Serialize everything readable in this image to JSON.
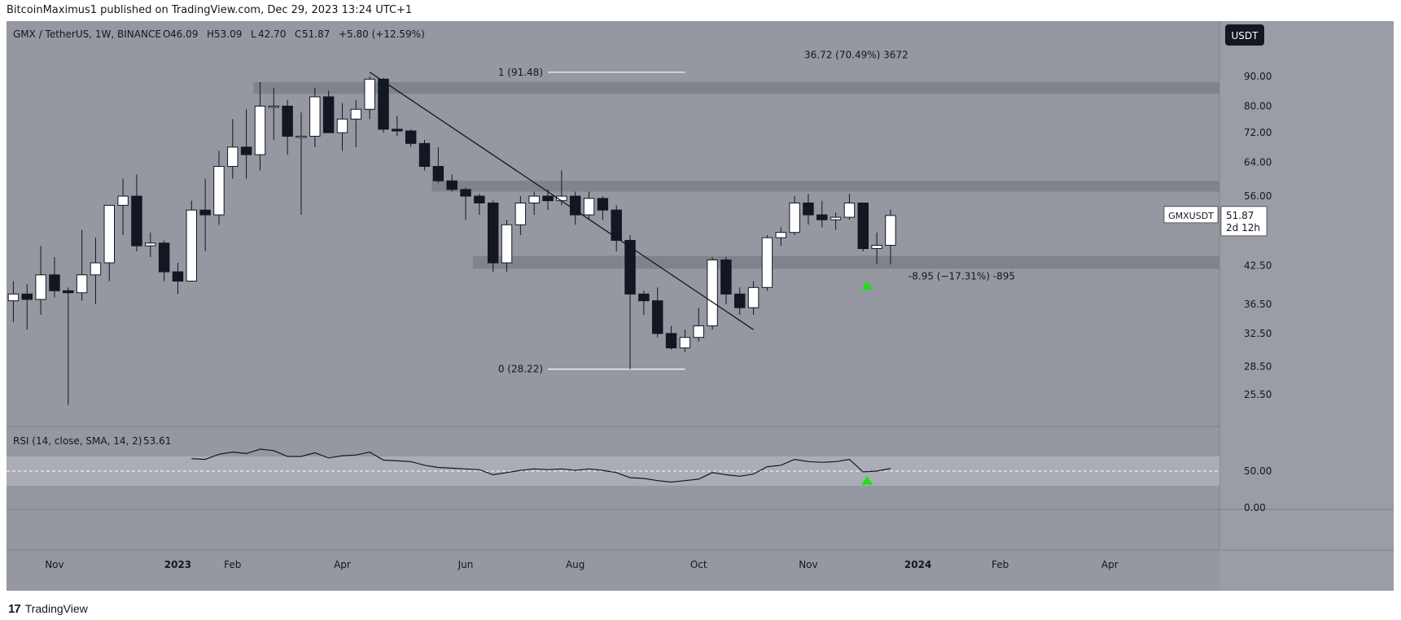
{
  "header": {
    "publisher": "BitcoinMaximus1 published on TradingView.com, Dec 29, 2023 13:24 UTC+1"
  },
  "footer": {
    "brand": "TradingView",
    "logo_glyph": "17"
  },
  "colors": {
    "background": "#9598a1",
    "up": "#ffffff",
    "down": "#131722",
    "zone": "#7c7f88",
    "green": "#22dd22"
  },
  "chart_data": [
    {
      "type": "candlestick",
      "symbol_line": "GMX / TetherUS, 1W, BINANCE",
      "ohlc_labels": {
        "o_label": "O",
        "o": "46.09",
        "h_label": "H",
        "h": "53.09",
        "l_label": "L",
        "l": "42.70",
        "c_label": "C",
        "c": "51.87",
        "change": "+5.80 (+12.59%)"
      },
      "currency_badge": "USDT",
      "price_tag": {
        "symbol": "GMXUSDT",
        "price": "51.87",
        "countdown": "2d 12h"
      },
      "y_scale": "log",
      "ylim": [
        22.5,
        112
      ],
      "y_ticks": [
        90.0,
        80.0,
        72.0,
        64.0,
        56.0,
        42.5,
        36.5,
        32.5,
        28.5,
        25.5
      ],
      "y_tick_labels": [
        "90.00",
        "80.00",
        "72.00",
        "64.00",
        "56.00",
        "42.50",
        "36.50",
        "32.50",
        "28.50",
        "25.50"
      ],
      "x_labels": [
        {
          "week": -6,
          "label": "Nov",
          "bold": false
        },
        {
          "week": 3,
          "label": "2023",
          "bold": true
        },
        {
          "week": 7,
          "label": "Feb",
          "bold": false
        },
        {
          "week": 15,
          "label": "Apr",
          "bold": false
        },
        {
          "week": 24,
          "label": "Jun",
          "bold": false
        },
        {
          "week": 32,
          "label": "Aug",
          "bold": false
        },
        {
          "week": 41,
          "label": "Oct",
          "bold": false
        },
        {
          "week": 49,
          "label": "Nov",
          "bold": false
        },
        {
          "week": 57,
          "label": "2024",
          "bold": true
        },
        {
          "week": 63,
          "label": "Feb",
          "bold": false
        },
        {
          "week": 71,
          "label": "Apr",
          "bold": false
        }
      ],
      "x_range": [
        -9.5,
        79
      ],
      "candles": [
        {
          "w": -9,
          "o": 37.0,
          "h": 40.0,
          "l": 34.0,
          "c": 38.0
        },
        {
          "w": -8,
          "o": 38.0,
          "h": 39.5,
          "l": 33.0,
          "c": 37.2
        },
        {
          "w": -7,
          "o": 37.2,
          "h": 46.0,
          "l": 35.0,
          "c": 41.0
        },
        {
          "w": -6,
          "o": 41.0,
          "h": 44.0,
          "l": 37.5,
          "c": 38.5
        },
        {
          "w": -5,
          "o": 38.5,
          "h": 39.0,
          "l": 24.5,
          "c": 38.2
        },
        {
          "w": -4,
          "o": 38.2,
          "h": 49.0,
          "l": 37.0,
          "c": 41.0
        },
        {
          "w": -3,
          "o": 41.0,
          "h": 47.5,
          "l": 36.5,
          "c": 43.0
        },
        {
          "w": -2,
          "o": 43.0,
          "h": 54.0,
          "l": 40.0,
          "c": 54.0
        },
        {
          "w": -1,
          "o": 54.0,
          "h": 60.0,
          "l": 48.0,
          "c": 56.0
        },
        {
          "w": 0,
          "o": 56.0,
          "h": 61.0,
          "l": 45.0,
          "c": 46.0
        },
        {
          "w": 1,
          "o": 46.0,
          "h": 48.5,
          "l": 44.0,
          "c": 46.5
        },
        {
          "w": 2,
          "o": 46.5,
          "h": 47.0,
          "l": 40.0,
          "c": 41.5
        },
        {
          "w": 3,
          "o": 41.5,
          "h": 43.0,
          "l": 38.0,
          "c": 40.0
        },
        {
          "w": 4,
          "o": 40.0,
          "h": 55.0,
          "l": 40.0,
          "c": 53.0
        },
        {
          "w": 5,
          "o": 53.0,
          "h": 60.0,
          "l": 45.0,
          "c": 52.0
        },
        {
          "w": 6,
          "o": 52.0,
          "h": 67.0,
          "l": 50.0,
          "c": 63.0
        },
        {
          "w": 7,
          "o": 63.0,
          "h": 76.0,
          "l": 60.0,
          "c": 68.0
        },
        {
          "w": 8,
          "o": 68.0,
          "h": 79.0,
          "l": 60.0,
          "c": 66.0
        },
        {
          "w": 9,
          "o": 66.0,
          "h": 88.0,
          "l": 62.0,
          "c": 80.0
        },
        {
          "w": 10,
          "o": 80.0,
          "h": 86.0,
          "l": 70.0,
          "c": 80.0
        },
        {
          "w": 11,
          "o": 80.0,
          "h": 82.0,
          "l": 66.0,
          "c": 71.0
        },
        {
          "w": 12,
          "o": 71.0,
          "h": 78.0,
          "l": 52.0,
          "c": 71.0
        },
        {
          "w": 13,
          "o": 71.0,
          "h": 86.0,
          "l": 68.0,
          "c": 83.0
        },
        {
          "w": 14,
          "o": 83.0,
          "h": 85.0,
          "l": 72.0,
          "c": 72.0
        },
        {
          "w": 15,
          "o": 72.0,
          "h": 81.0,
          "l": 67.0,
          "c": 76.0
        },
        {
          "w": 16,
          "o": 76.0,
          "h": 82.0,
          "l": 68.0,
          "c": 79.0
        },
        {
          "w": 17,
          "o": 79.0,
          "h": 90.0,
          "l": 76.0,
          "c": 89.0
        },
        {
          "w": 18,
          "o": 89.0,
          "h": 89.5,
          "l": 72.0,
          "c": 73.0
        },
        {
          "w": 19,
          "o": 73.0,
          "h": 77.0,
          "l": 71.0,
          "c": 72.5
        },
        {
          "w": 20,
          "o": 72.5,
          "h": 73.0,
          "l": 68.0,
          "c": 69.0
        },
        {
          "w": 21,
          "o": 69.0,
          "h": 70.0,
          "l": 62.0,
          "c": 63.0
        },
        {
          "w": 22,
          "o": 63.0,
          "h": 68.0,
          "l": 59.0,
          "c": 59.5
        },
        {
          "w": 23,
          "o": 59.5,
          "h": 61.0,
          "l": 57.0,
          "c": 57.5
        },
        {
          "w": 24,
          "o": 57.5,
          "h": 58.0,
          "l": 51.0,
          "c": 56.0
        },
        {
          "w": 25,
          "o": 56.0,
          "h": 56.5,
          "l": 52.0,
          "c": 54.5
        },
        {
          "w": 26,
          "o": 54.5,
          "h": 55.0,
          "l": 41.5,
          "c": 43.0
        },
        {
          "w": 27,
          "o": 43.0,
          "h": 51.0,
          "l": 41.5,
          "c": 50.0
        },
        {
          "w": 28,
          "o": 50.0,
          "h": 56.0,
          "l": 48.0,
          "c": 54.5
        },
        {
          "w": 29,
          "o": 54.5,
          "h": 57.0,
          "l": 52.0,
          "c": 56.0
        },
        {
          "w": 30,
          "o": 56.0,
          "h": 57.5,
          "l": 53.0,
          "c": 55.0
        },
        {
          "w": 31,
          "o": 55.0,
          "h": 62.0,
          "l": 54.0,
          "c": 56.0
        },
        {
          "w": 32,
          "o": 56.0,
          "h": 57.0,
          "l": 50.0,
          "c": 52.0
        },
        {
          "w": 33,
          "o": 52.0,
          "h": 57.0,
          "l": 51.0,
          "c": 55.5
        },
        {
          "w": 34,
          "o": 55.5,
          "h": 56.0,
          "l": 51.0,
          "c": 53.0
        },
        {
          "w": 35,
          "o": 53.0,
          "h": 54.0,
          "l": 45.0,
          "c": 47.0
        },
        {
          "w": 36,
          "o": 47.0,
          "h": 48.0,
          "l": 28.22,
          "c": 38.0
        },
        {
          "w": 37,
          "o": 38.0,
          "h": 38.5,
          "l": 35.0,
          "c": 37.0
        },
        {
          "w": 38,
          "o": 37.0,
          "h": 39.0,
          "l": 32.0,
          "c": 32.5
        },
        {
          "w": 39,
          "o": 32.5,
          "h": 33.5,
          "l": 30.5,
          "c": 30.7
        },
        {
          "w": 40,
          "o": 30.7,
          "h": 33.0,
          "l": 30.2,
          "c": 32.0
        },
        {
          "w": 41,
          "o": 32.0,
          "h": 36.0,
          "l": 31.5,
          "c": 33.5
        },
        {
          "w": 42,
          "o": 33.5,
          "h": 44.0,
          "l": 33.0,
          "c": 43.5
        },
        {
          "w": 43,
          "o": 43.5,
          "h": 44.0,
          "l": 36.5,
          "c": 38.0
        },
        {
          "w": 44,
          "o": 38.0,
          "h": 39.0,
          "l": 35.0,
          "c": 36.0
        },
        {
          "w": 45,
          "o": 36.0,
          "h": 40.0,
          "l": 35.0,
          "c": 39.0
        },
        {
          "w": 46,
          "o": 39.0,
          "h": 48.0,
          "l": 38.5,
          "c": 47.5
        },
        {
          "w": 47,
          "o": 47.5,
          "h": 49.5,
          "l": 46.0,
          "c": 48.5
        },
        {
          "w": 48,
          "o": 48.5,
          "h": 56.0,
          "l": 48.0,
          "c": 54.5
        },
        {
          "w": 49,
          "o": 54.5,
          "h": 56.5,
          "l": 50.0,
          "c": 52.0
        },
        {
          "w": 50,
          "o": 52.0,
          "h": 55.0,
          "l": 49.5,
          "c": 51.0
        },
        {
          "w": 51,
          "o": 51.0,
          "h": 52.5,
          "l": 49.0,
          "c": 51.5
        },
        {
          "w": 52,
          "o": 51.5,
          "h": 56.5,
          "l": 51.0,
          "c": 54.5
        },
        {
          "w": 53,
          "o": 54.5,
          "h": 54.5,
          "l": 45.0,
          "c": 45.5
        },
        {
          "w": 54,
          "o": 45.5,
          "h": 48.5,
          "l": 42.8,
          "c": 46.09
        },
        {
          "w": 55,
          "o": 46.09,
          "h": 53.09,
          "l": 42.7,
          "c": 51.87
        }
      ],
      "horizontal_zones": [
        {
          "low": 84.0,
          "high": 88.0,
          "from_week": 9,
          "label": ""
        },
        {
          "low": 57.0,
          "high": 59.5,
          "from_week": 22,
          "label": ""
        },
        {
          "low": 42.0,
          "high": 44.2,
          "from_week": 25,
          "label": ""
        }
      ],
      "fib_levels": [
        {
          "label": "1 (91.48)",
          "value": 91.48,
          "from_week": 30,
          "to_week": 40
        },
        {
          "label": "0 (28.22)",
          "value": 28.22,
          "from_week": 30,
          "to_week": 40
        }
      ],
      "trendline": {
        "from_week": 17,
        "from_value": 91.5,
        "to_week": 45,
        "to_value": 33.0
      },
      "measure_labels": [
        {
          "text": "36.72 (70.49%) 3672",
          "week": 52.5,
          "value": 98
        },
        {
          "text": "-8.95 (−17.31%) -895",
          "week": 60.2,
          "value": 40.8
        }
      ],
      "measure_vline": {
        "week": 60.5,
        "low": 44.3,
        "high": 53.5
      },
      "markers": [
        {
          "week": 53.3,
          "value": 39.3,
          "shape": "triangle-up"
        }
      ]
    },
    {
      "type": "line",
      "title": "RSI (14, close, SMA, 14, 2)",
      "last_value": "53.61",
      "ylim": [
        0,
        100
      ],
      "y_ticks": [
        50.0,
        0.0
      ],
      "y_tick_labels": [
        "50.00",
        "0.00"
      ],
      "band": [
        30,
        70
      ],
      "midline": 50,
      "series": [
        {
          "values": [
            {
              "w": 4,
              "v": 67
            },
            {
              "w": 5,
              "v": 66
            },
            {
              "w": 6,
              "v": 73
            },
            {
              "w": 7,
              "v": 76
            },
            {
              "w": 8,
              "v": 74
            },
            {
              "w": 9,
              "v": 80
            },
            {
              "w": 10,
              "v": 78
            },
            {
              "w": 11,
              "v": 70
            },
            {
              "w": 12,
              "v": 70
            },
            {
              "w": 13,
              "v": 75
            },
            {
              "w": 14,
              "v": 68
            },
            {
              "w": 15,
              "v": 71
            },
            {
              "w": 16,
              "v": 72
            },
            {
              "w": 17,
              "v": 76
            },
            {
              "w": 18,
              "v": 65
            },
            {
              "w": 19,
              "v": 64
            },
            {
              "w": 20,
              "v": 63
            },
            {
              "w": 21,
              "v": 58
            },
            {
              "w": 22,
              "v": 55
            },
            {
              "w": 23,
              "v": 54
            },
            {
              "w": 24,
              "v": 53
            },
            {
              "w": 25,
              "v": 52
            },
            {
              "w": 26,
              "v": 45
            },
            {
              "w": 27,
              "v": 48
            },
            {
              "w": 28,
              "v": 51
            },
            {
              "w": 29,
              "v": 53
            },
            {
              "w": 30,
              "v": 52
            },
            {
              "w": 31,
              "v": 53
            },
            {
              "w": 32,
              "v": 51
            },
            {
              "w": 33,
              "v": 53
            },
            {
              "w": 34,
              "v": 51
            },
            {
              "w": 35,
              "v": 48
            },
            {
              "w": 36,
              "v": 41
            },
            {
              "w": 37,
              "v": 40
            },
            {
              "w": 38,
              "v": 37
            },
            {
              "w": 39,
              "v": 35
            },
            {
              "w": 40,
              "v": 37
            },
            {
              "w": 41,
              "v": 39
            },
            {
              "w": 42,
              "v": 48
            },
            {
              "w": 43,
              "v": 45
            },
            {
              "w": 44,
              "v": 43
            },
            {
              "w": 45,
              "v": 46
            },
            {
              "w": 46,
              "v": 56
            },
            {
              "w": 47,
              "v": 58
            },
            {
              "w": 48,
              "v": 66
            },
            {
              "w": 49,
              "v": 63
            },
            {
              "w": 50,
              "v": 62
            },
            {
              "w": 51,
              "v": 63
            },
            {
              "w": 52,
              "v": 66
            },
            {
              "w": 53,
              "v": 49
            },
            {
              "w": 54,
              "v": 50
            },
            {
              "w": 55,
              "v": 53.61
            }
          ]
        }
      ],
      "markers": [
        {
          "week": 53.3,
          "value": 37,
          "shape": "triangle-up"
        }
      ]
    }
  ]
}
